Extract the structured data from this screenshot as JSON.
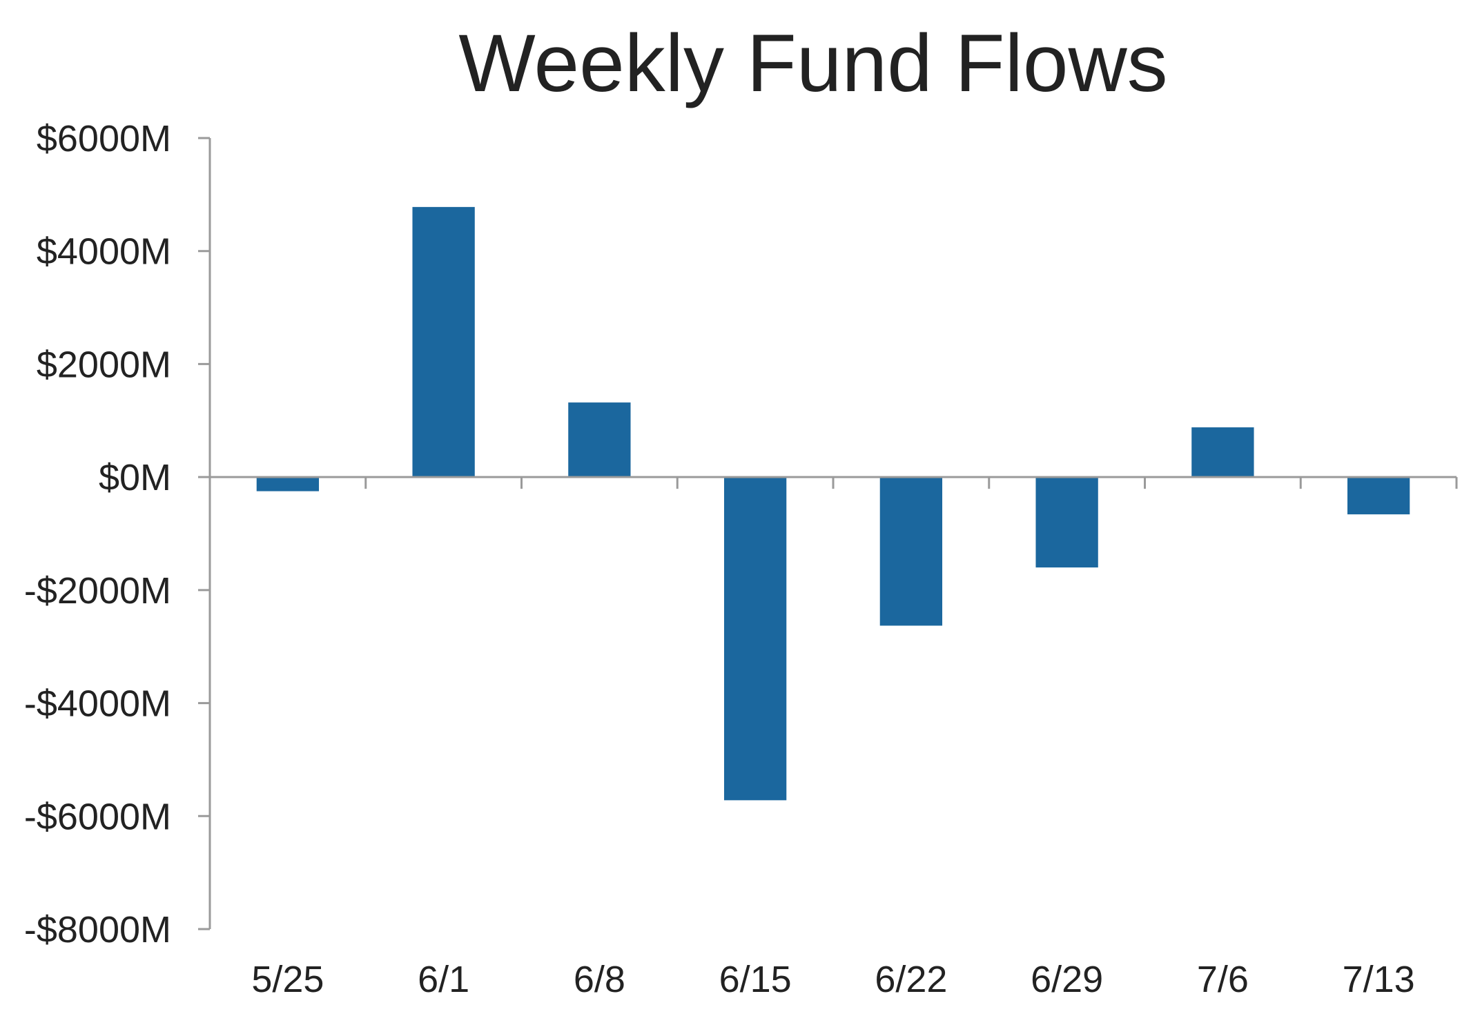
{
  "chart_data": {
    "type": "bar",
    "title": "Weekly Fund Flows",
    "xlabel": "",
    "ylabel": "",
    "categories": [
      "5/25",
      "6/1",
      "6/8",
      "6/15",
      "6/22",
      "6/29",
      "7/6",
      "7/13"
    ],
    "values": [
      -250,
      4780,
      1320,
      -5720,
      -2630,
      -1600,
      880,
      -660
    ],
    "ylim": [
      -8000,
      6000
    ],
    "y_ticks": [
      6000,
      4000,
      2000,
      0,
      -2000,
      -4000,
      -6000,
      -8000
    ],
    "y_tick_labels": [
      "$6000M",
      "$4000M",
      "$2000M",
      "$0M",
      "-$2000M",
      "-$4000M",
      "-$6000M",
      "-$8000M"
    ],
    "bar_color": "#1b679e",
    "axis_color": "#9a9a9a",
    "grid": false,
    "legend": "none"
  }
}
